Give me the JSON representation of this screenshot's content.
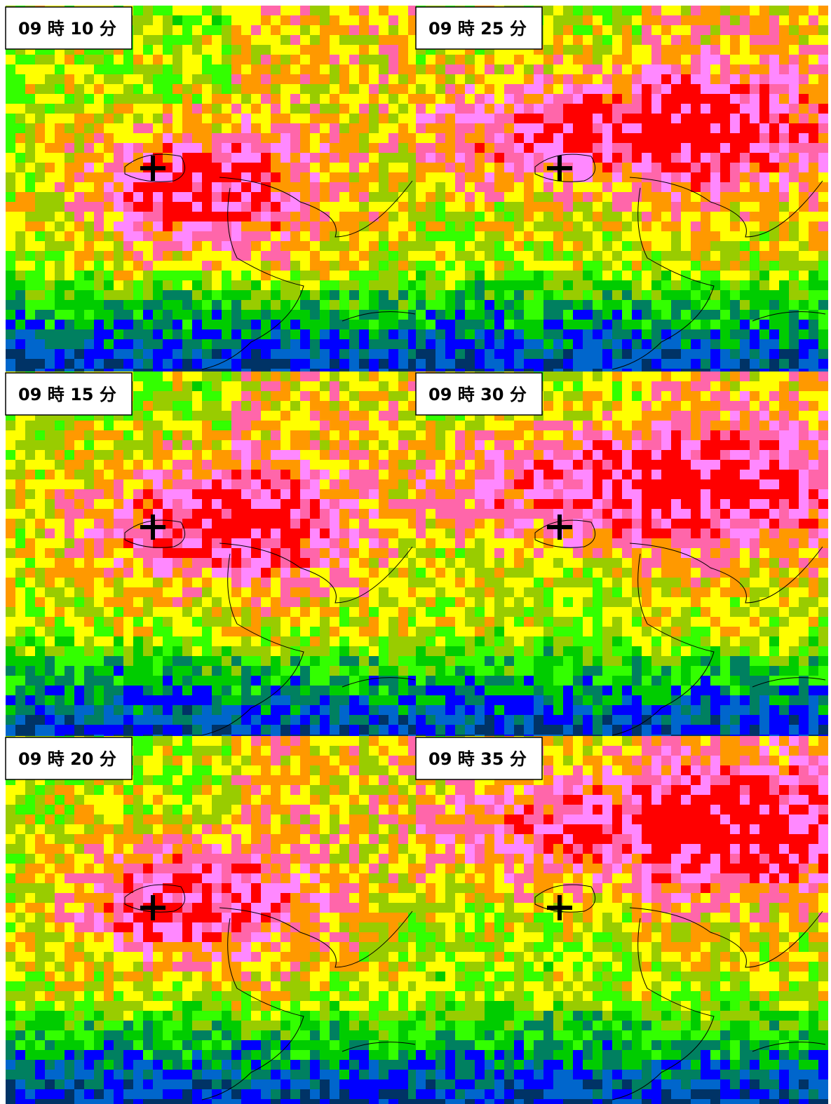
{
  "panels": [
    {
      "label": "09 時 10 分"
    },
    {
      "label": "09 時 15 分"
    },
    {
      "label": "09 時 20 分"
    },
    {
      "label": "09 時 25 分"
    },
    {
      "label": "09 時 30 分"
    },
    {
      "label": "09 時 35 分"
    }
  ]
}
